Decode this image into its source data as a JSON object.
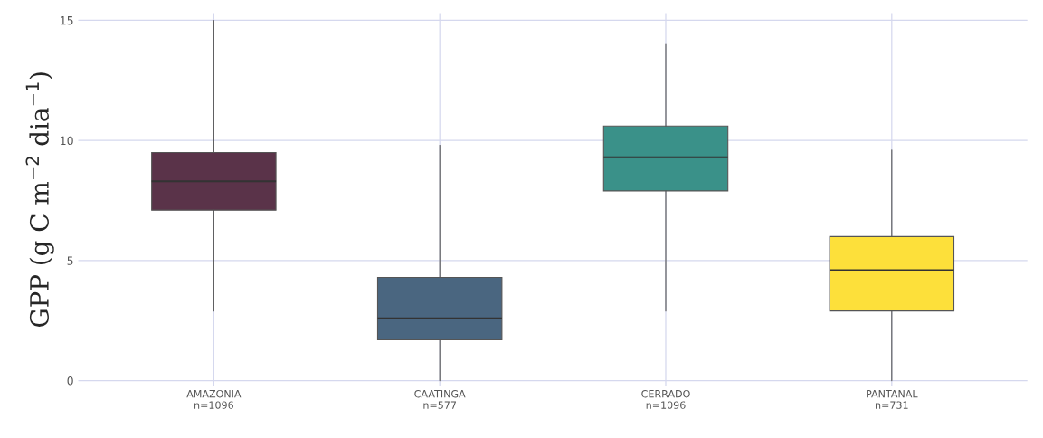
{
  "chart_data": {
    "type": "box",
    "ylabel": "GPP (g C m$^{−2}$ dia$^{−1}$)",
    "categories": [
      "AMAZONIA\nn=1096",
      "CAATINGA\nn=577",
      "CERRADO\nn=1096",
      "PANTANAL\nn=731"
    ],
    "colors": [
      "#5a3349",
      "#4a6680",
      "#3a9189",
      "#fde03a"
    ],
    "boxes": [
      {
        "low": 2.9,
        "q1": 7.1,
        "median": 8.3,
        "q3": 9.5,
        "high": 15.0
      },
      {
        "low": 0.0,
        "q1": 1.7,
        "median": 2.6,
        "q3": 4.3,
        "high": 9.8
      },
      {
        "low": 2.9,
        "q1": 7.9,
        "median": 9.3,
        "q3": 10.6,
        "high": 14.0
      },
      {
        "low": 0.0,
        "q1": 2.9,
        "median": 4.6,
        "q3": 6.0,
        "high": 9.6
      }
    ],
    "ylim": [
      -0.2,
      15.3
    ],
    "yticks": [
      0,
      5,
      10,
      15
    ],
    "grid": true
  }
}
